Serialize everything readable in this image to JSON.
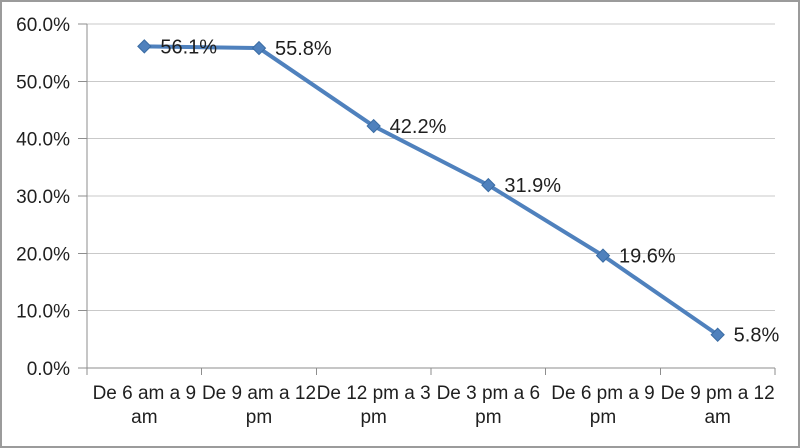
{
  "chart_data": {
    "type": "line",
    "title": "",
    "xlabel": "",
    "ylabel": "",
    "categories": [
      "De 6 am a 9 am",
      "De 9 am a 12 pm",
      "De 12 pm a 3 pm",
      "De 3 pm a 6 pm",
      "De 6 pm a 9 pm",
      "De 9 pm a 12 am"
    ],
    "categories_wrapped": [
      [
        "De 6 am a 9",
        "am"
      ],
      [
        "De 9 am a 12",
        "pm"
      ],
      [
        "De 12 pm a 3",
        "pm"
      ],
      [
        "De 3 pm a 6",
        "pm"
      ],
      [
        "De 6 pm a 9",
        "pm"
      ],
      [
        "De 9 pm a 12",
        "am"
      ]
    ],
    "series": [
      {
        "name": "",
        "values": [
          56.1,
          55.8,
          42.2,
          31.9,
          19.6,
          5.8
        ]
      }
    ],
    "point_labels": [
      "56.1%",
      "55.8%",
      "42.2%",
      "31.9%",
      "19.6%",
      "5.8%"
    ],
    "y_tick_labels": [
      "0.0%",
      "10.0%",
      "20.0%",
      "30.0%",
      "40.0%",
      "50.0%",
      "60.0%"
    ],
    "ylim": [
      0,
      60
    ],
    "y_step": 10,
    "grid": "horizontal",
    "legend": "none",
    "marker": "diamond",
    "colors": {
      "line": "#4F81BD",
      "marker_fill": "#4F81BD",
      "marker_stroke": "#3A6CA3",
      "gridline": "#C9C9C9",
      "axis": "#8E8E8E",
      "text": "#1F1F1F",
      "border": "#9B9B9B",
      "background": "#FFFFFF"
    }
  }
}
